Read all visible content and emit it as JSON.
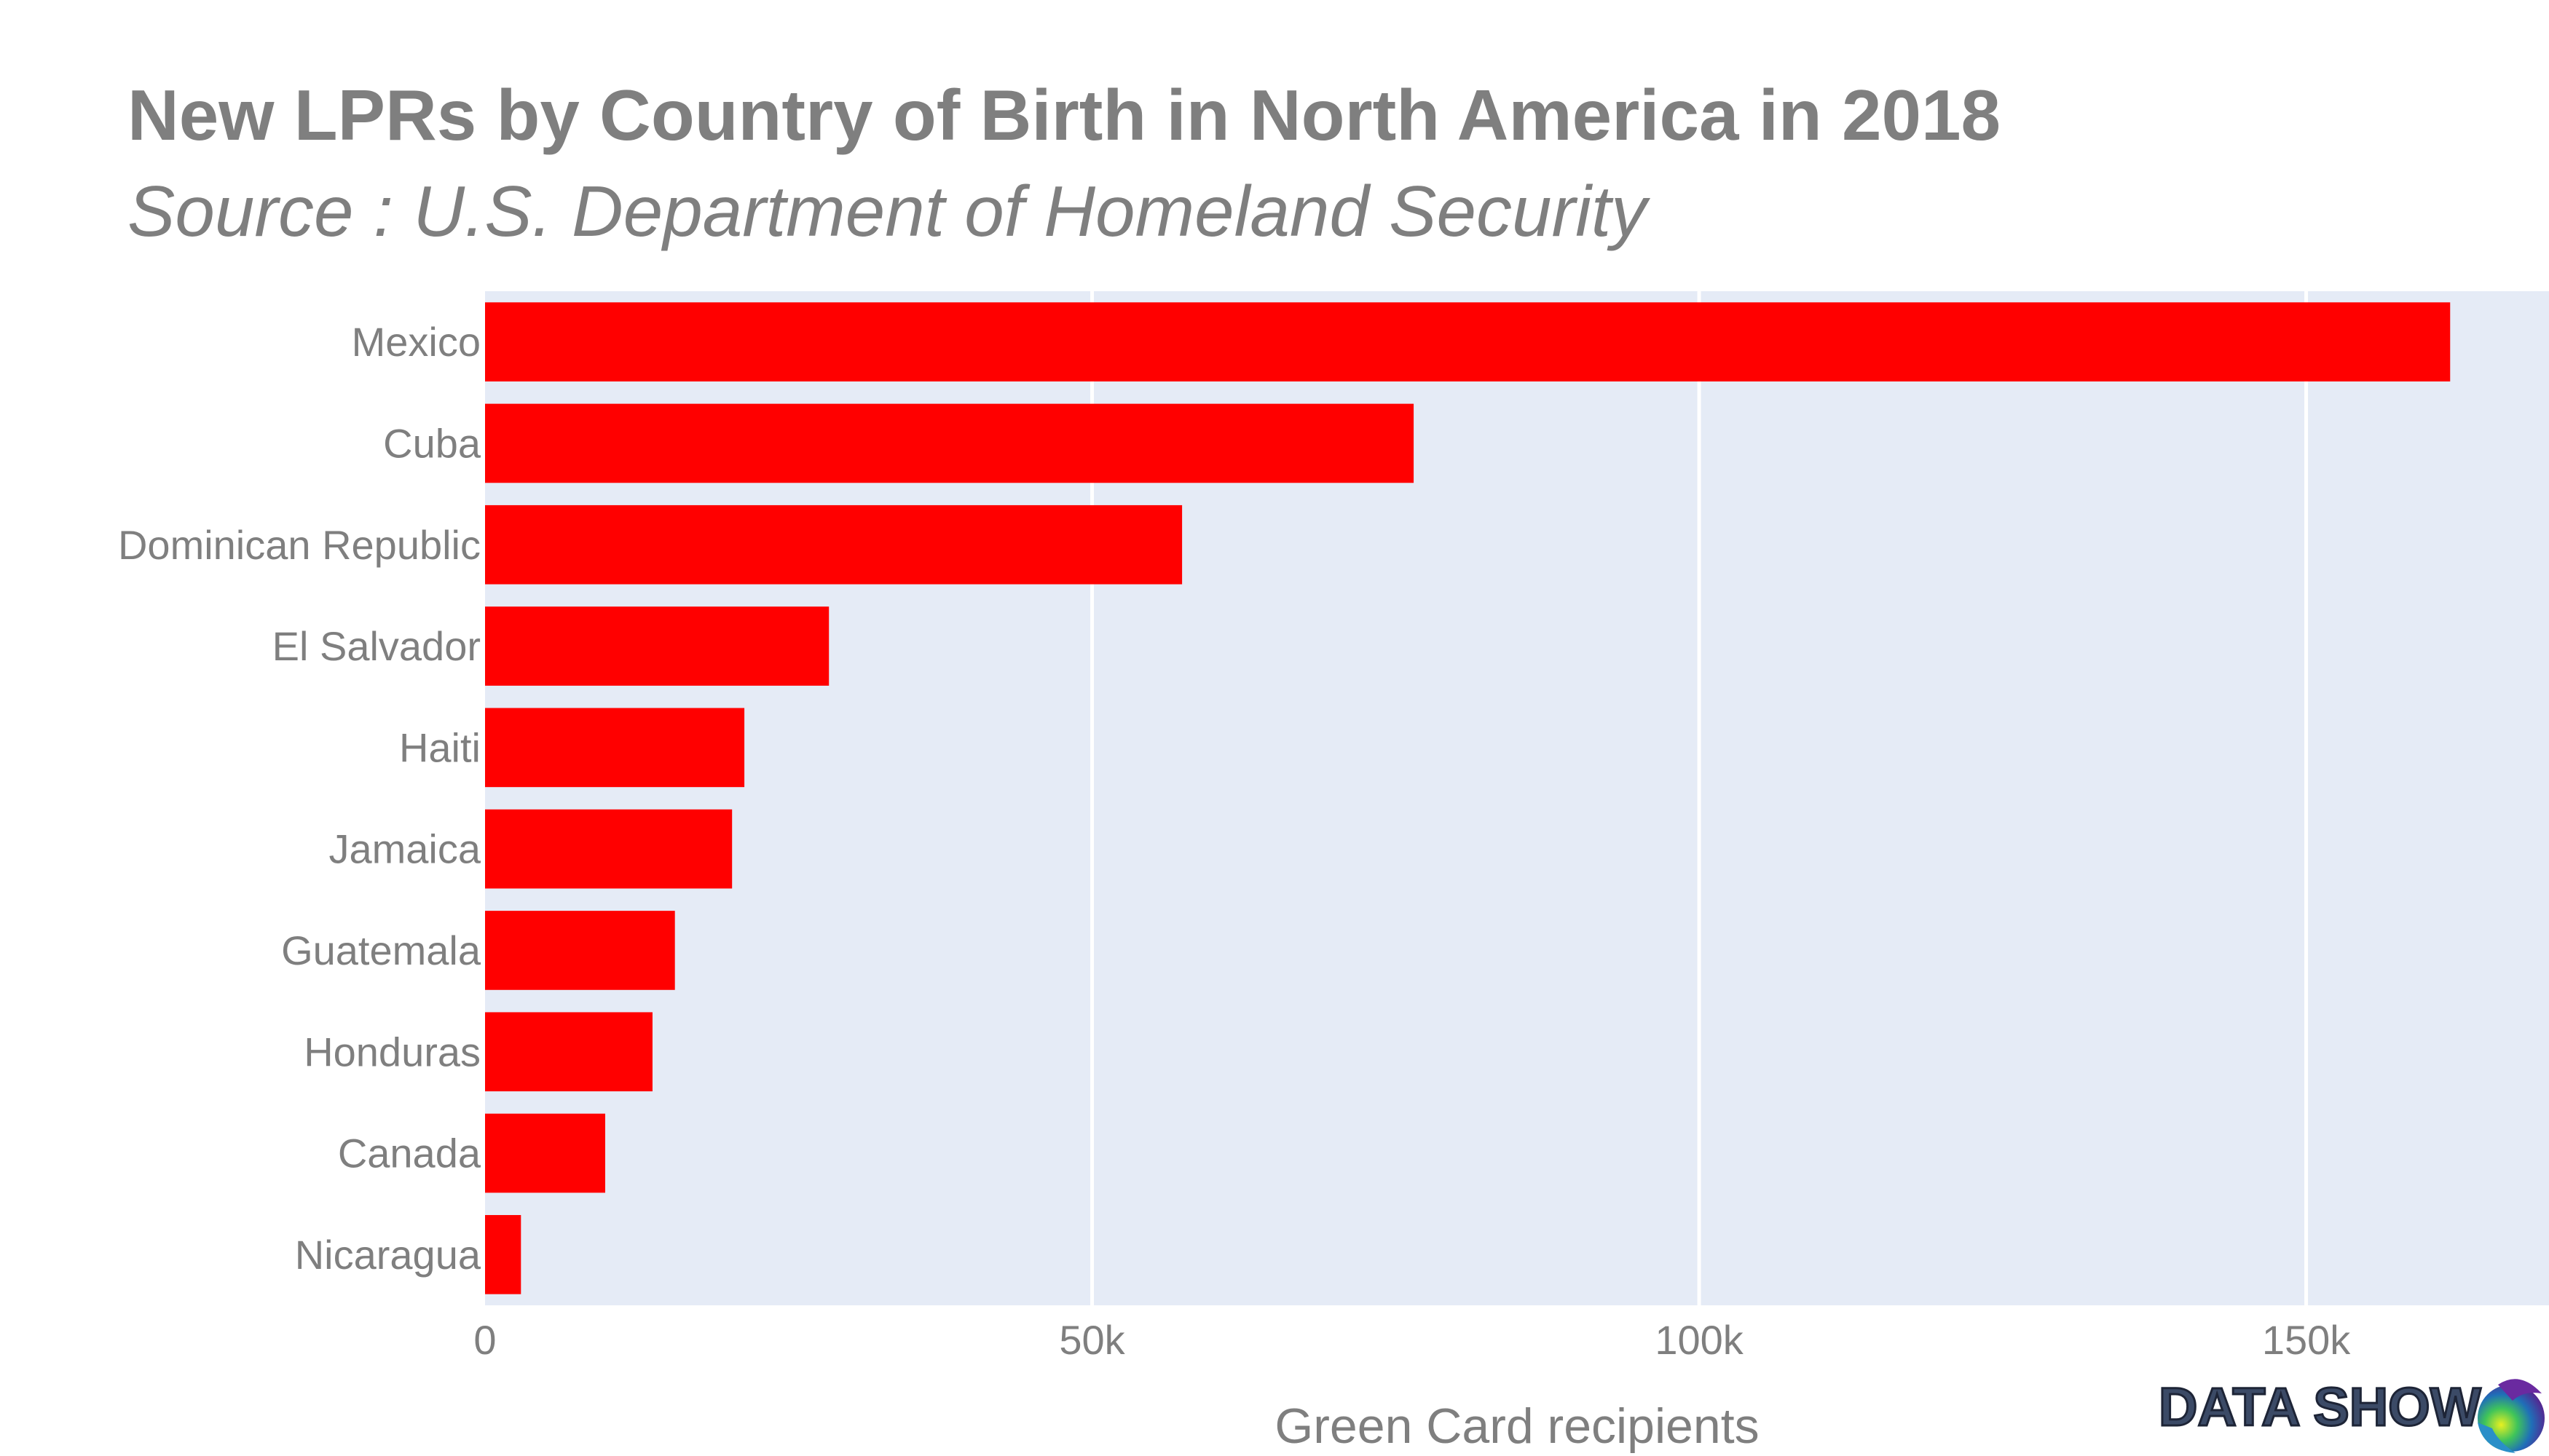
{
  "chart_data": {
    "type": "bar",
    "orientation": "horizontal",
    "title": "New LPRs by Country of Birth in North America in 2018",
    "subtitle": "Source : U.S. Department of Homeland Security",
    "xlabel": "Green Card recipients",
    "ylabel": "",
    "categories": [
      "Mexico",
      "Cuba",
      "Dominican Republic",
      "El Salvador",
      "Haiti",
      "Jamaica",
      "Guatemala",
      "Honduras",
      "Canada",
      "Nicaragua"
    ],
    "values": [
      161858,
      76486,
      57413,
      28326,
      21360,
      20347,
      15638,
      13794,
      9898,
      2958
    ],
    "xlim": [
      0,
      170000
    ],
    "xticks": [
      0,
      50000,
      100000,
      150000
    ],
    "xtick_labels": [
      "0",
      "50k",
      "100k",
      "150k"
    ],
    "bar_color": "#ff0000",
    "plot_background": "#e5ebf6",
    "grid": true,
    "legend": false
  },
  "logo": {
    "text": "DATA SHOW",
    "icon": "globe-swirl-icon"
  }
}
